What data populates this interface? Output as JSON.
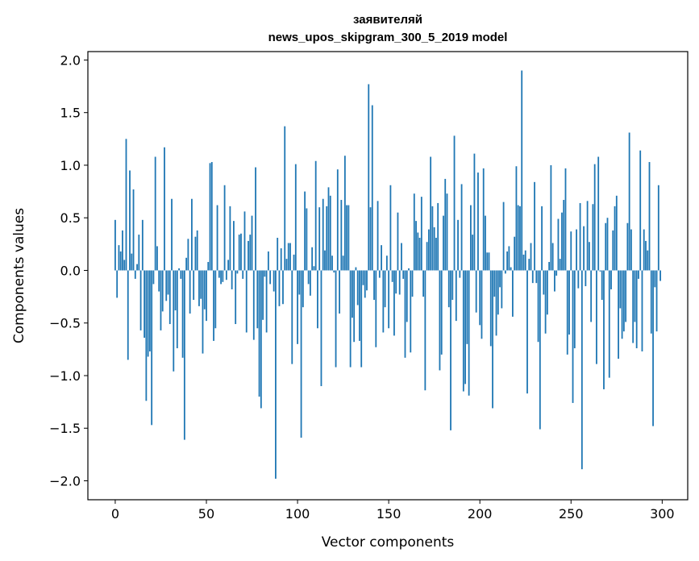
{
  "chart_data": {
    "type": "bar",
    "title": [
      "заявителяй",
      "news_upos_skipgram_300_5_2019 model"
    ],
    "xlabel": "Vector components",
    "ylabel": "Components values",
    "xlim": [
      -15,
      314
    ],
    "ylim": [
      -2.18,
      2.08
    ],
    "xticks": [
      0,
      50,
      100,
      150,
      200,
      250,
      300
    ],
    "xtick_labels": [
      "0",
      "50",
      "100",
      "150",
      "200",
      "250",
      "300"
    ],
    "yticks": [
      -2.0,
      -1.5,
      -1.0,
      -0.5,
      0.0,
      0.5,
      1.0,
      1.5,
      2.0
    ],
    "ytick_labels": [
      "−2.0",
      "−1.5",
      "−1.0",
      "−0.5",
      "0.0",
      "0.5",
      "1.0",
      "1.5",
      "2.0"
    ],
    "grid": false,
    "bar_color": "#1f77b4",
    "values": [
      0.48,
      -0.26,
      0.24,
      0.18,
      0.38,
      0.1,
      1.25,
      -0.85,
      0.95,
      0.16,
      0.77,
      -0.08,
      0.06,
      0.34,
      -0.57,
      0.48,
      -0.64,
      -1.24,
      -0.82,
      -0.77,
      -1.47,
      -0.13,
      1.08,
      0.23,
      -0.2,
      -0.57,
      -0.39,
      1.17,
      -0.29,
      -0.23,
      -0.51,
      0.68,
      -0.96,
      -0.38,
      -0.74,
      0.02,
      -0.08,
      -0.83,
      -1.61,
      0.12,
      0.3,
      -0.41,
      0.68,
      -0.28,
      0.32,
      0.38,
      -0.34,
      -0.27,
      -0.79,
      -0.37,
      -0.48,
      0.08,
      1.02,
      1.03,
      -0.67,
      -0.55,
      0.62,
      -0.07,
      -0.13,
      -0.11,
      0.81,
      -0.09,
      0.1,
      0.61,
      -0.18,
      0.47,
      -0.51,
      -0.03,
      0.34,
      0.35,
      -0.08,
      0.56,
      -0.59,
      0.28,
      0.34,
      0.52,
      -0.66,
      0.98,
      -0.55,
      -1.2,
      -1.31,
      -0.47,
      -0.06,
      -0.59,
      0.18,
      -0.13,
      0.0,
      -0.2,
      -1.98,
      0.31,
      -0.34,
      0.21,
      -0.32,
      1.37,
      0.11,
      0.26,
      0.26,
      -0.89,
      0.15,
      1.01,
      -0.7,
      -0.23,
      -1.59,
      -0.35,
      0.75,
      0.59,
      -0.13,
      -0.24,
      0.22,
      0.04,
      1.04,
      -0.55,
      0.6,
      -1.1,
      0.68,
      0.19,
      0.61,
      0.79,
      0.71,
      0.14,
      -0.02,
      -0.92,
      0.96,
      -0.41,
      0.67,
      0.14,
      1.09,
      0.62,
      0.62,
      -0.92,
      -0.45,
      -0.68,
      0.03,
      -0.33,
      -0.67,
      -0.92,
      -0.14,
      -0.26,
      -0.19,
      1.77,
      0.6,
      1.57,
      -0.28,
      -0.73,
      0.66,
      -0.07,
      0.24,
      -0.59,
      -0.35,
      0.14,
      -0.55,
      0.81,
      -0.11,
      -0.62,
      -0.22,
      0.55,
      -0.23,
      0.26,
      -0.08,
      -0.83,
      -0.49,
      0.02,
      -0.78,
      -0.25,
      0.73,
      0.47,
      0.36,
      0.31,
      0.7,
      -0.25,
      -1.14,
      0.27,
      0.39,
      1.08,
      0.61,
      0.41,
      0.31,
      0.64,
      -0.95,
      -0.8,
      0.52,
      0.87,
      0.73,
      -0.35,
      -1.52,
      -0.28,
      1.28,
      -0.48,
      0.48,
      -0.07,
      0.82,
      -1.15,
      -1.08,
      -0.7,
      -1.19,
      0.62,
      0.34,
      1.11,
      -0.4,
      0.93,
      -0.52,
      -0.65,
      0.97,
      0.52,
      0.17,
      0.17,
      -0.72,
      -1.31,
      -0.25,
      -0.62,
      -0.42,
      -0.16,
      -0.36,
      0.65,
      -0.03,
      0.18,
      0.23,
      0.03,
      -0.44,
      0.32,
      0.99,
      0.62,
      0.61,
      1.9,
      0.15,
      0.19,
      -1.17,
      0.11,
      0.26,
      -0.12,
      0.84,
      -0.12,
      -0.68,
      -1.51,
      0.61,
      -0.23,
      -0.6,
      -0.42,
      0.08,
      1.0,
      0.26,
      -0.2,
      -0.05,
      0.49,
      0.11,
      0.55,
      0.67,
      0.97,
      -0.8,
      -0.61,
      0.37,
      -1.26,
      -0.74,
      0.39,
      -0.17,
      0.64,
      -1.89,
      0.42,
      -0.15,
      0.66,
      0.27,
      -0.49,
      0.63,
      1.01,
      -0.89,
      1.08,
      -0.01,
      -0.28,
      -1.13,
      0.45,
      0.5,
      -1.02,
      -0.18,
      0.38,
      0.61,
      0.71,
      -0.84,
      -0.36,
      -0.65,
      -0.58,
      -0.49,
      0.45,
      1.31,
      0.39,
      -0.69,
      -0.49,
      -0.74,
      -0.08,
      1.14,
      -0.77,
      0.39,
      0.28,
      0.19,
      1.03,
      -0.6,
      -1.48,
      -0.16,
      -0.58,
      0.81,
      -0.1
    ]
  }
}
